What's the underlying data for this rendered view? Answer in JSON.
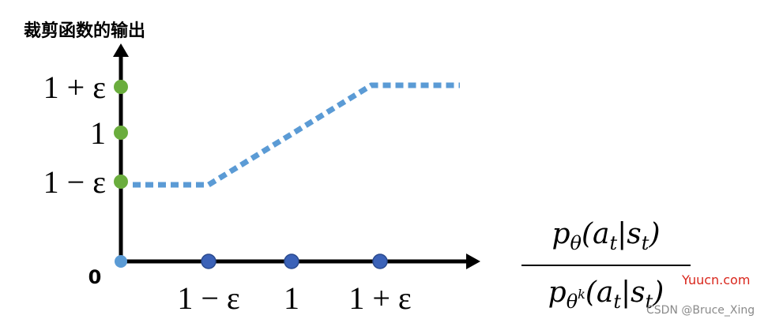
{
  "title": "裁剪函数的输出",
  "y_axis": {
    "labels": [
      "1 + ε",
      "1",
      "1 − ε"
    ],
    "origin": "0"
  },
  "x_axis": {
    "labels": [
      "1 − ε",
      "1",
      "1 + ε"
    ]
  },
  "ratio": {
    "numerator": [
      "p",
      "θ",
      "(a",
      "t",
      "|s",
      "t",
      ")"
    ],
    "denominator": [
      "p",
      "θ",
      "k",
      "(a",
      "t",
      "|s",
      "t",
      ")"
    ]
  },
  "watermarks": [
    "Yuucn.com",
    "CSDN @Bruce_Xing"
  ]
}
